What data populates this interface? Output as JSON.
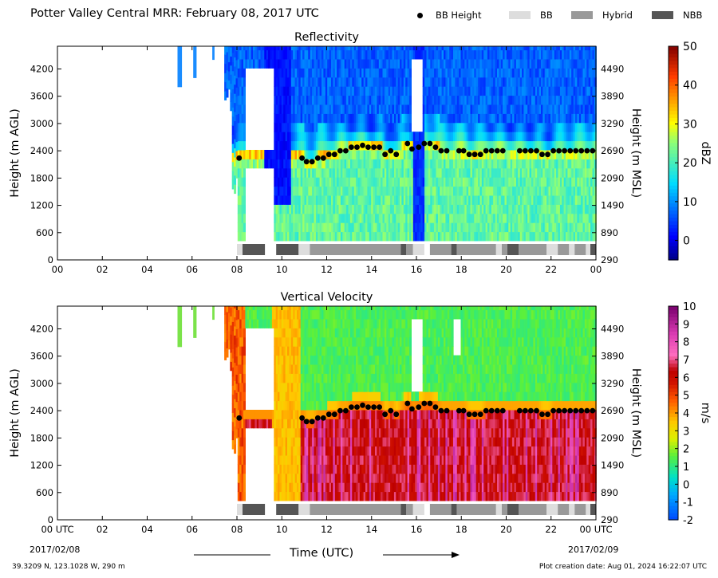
{
  "figure": {
    "title": "Potter Valley Central MRR:  February 08, 2017 UTC",
    "location_text": "39.3209 N, 123.1028 W, 290 m",
    "creation_text": "Plot creation date: Aug 01, 2024 16:22:07 UTC",
    "x_axis_title": "Time (UTC)",
    "date_start": "2017/02/08",
    "date_end": "2017/02/09"
  },
  "legend": {
    "items": [
      {
        "label": "BB Height",
        "kind": "dot",
        "color": "#000000"
      },
      {
        "label": "BB",
        "kind": "swatch",
        "color": "#dddddd"
      },
      {
        "label": "Hybrid",
        "kind": "swatch",
        "color": "#999999"
      },
      {
        "label": "NBB",
        "kind": "swatch",
        "color": "#555555"
      }
    ]
  },
  "chart_data": [
    {
      "type": "heatmap",
      "title": "Reflectivity",
      "ylabel": "Height (m AGL)",
      "y2label": "Height (m MSL)",
      "xlim": [
        0,
        24
      ],
      "ylim": [
        0,
        4700
      ],
      "x_ticks": [
        "00",
        "02",
        "04",
        "06",
        "08",
        "10",
        "12",
        "14",
        "16",
        "18",
        "20",
        "22",
        "00"
      ],
      "y_ticks": [
        0,
        600,
        1200,
        1800,
        2400,
        3000,
        3600,
        4200
      ],
      "y2_ticks": [
        290,
        890,
        1490,
        2090,
        2690,
        3290,
        3890,
        4490
      ],
      "colorbar": {
        "label": "dBZ",
        "range": [
          -5,
          50
        ],
        "ticks": [
          0,
          10,
          20,
          30,
          40,
          50
        ]
      },
      "bb_height_m_agl": {
        "x": [
          8.1,
          10.9,
          11.1,
          11.35,
          11.6,
          11.85,
          12.1,
          12.35,
          12.6,
          12.85,
          13.1,
          13.35,
          13.6,
          13.85,
          14.1,
          14.35,
          14.6,
          14.85,
          15.1,
          15.6,
          15.8,
          16.1,
          16.35,
          16.6,
          16.85,
          17.1,
          17.35,
          17.9,
          18.1,
          18.35,
          18.6,
          18.85,
          19.1,
          19.35,
          19.6,
          19.85,
          20.6,
          20.85,
          21.1,
          21.35,
          21.6,
          21.85,
          22.1,
          22.35,
          22.6,
          22.85,
          23.1,
          23.35,
          23.6,
          23.85
        ],
        "y": [
          2240,
          2240,
          2160,
          2160,
          2240,
          2240,
          2320,
          2320,
          2400,
          2400,
          2480,
          2480,
          2520,
          2480,
          2480,
          2480,
          2320,
          2400,
          2320,
          2560,
          2440,
          2480,
          2560,
          2560,
          2480,
          2400,
          2400,
          2400,
          2400,
          2320,
          2320,
          2320,
          2400,
          2400,
          2400,
          2400,
          2400,
          2400,
          2400,
          2400,
          2320,
          2320,
          2400,
          2400,
          2400,
          2400,
          2400,
          2400,
          2400,
          2400
        ]
      },
      "bb_type_bar": [
        {
          "start": 8.0,
          "end": 8.25,
          "type": "BB"
        },
        {
          "start": 8.25,
          "end": 9.25,
          "type": "NBB"
        },
        {
          "start": 9.75,
          "end": 10.75,
          "type": "NBB"
        },
        {
          "start": 10.75,
          "end": 11.25,
          "type": "BB"
        },
        {
          "start": 11.25,
          "end": 15.3,
          "type": "Hybrid"
        },
        {
          "start": 15.3,
          "end": 15.55,
          "type": "NBB"
        },
        {
          "start": 15.55,
          "end": 15.85,
          "type": "Hybrid"
        },
        {
          "start": 15.85,
          "end": 16.35,
          "type": "BB"
        },
        {
          "start": 16.6,
          "end": 17.55,
          "type": "Hybrid"
        },
        {
          "start": 17.55,
          "end": 17.8,
          "type": "NBB"
        },
        {
          "start": 17.8,
          "end": 19.55,
          "type": "Hybrid"
        },
        {
          "start": 19.55,
          "end": 19.8,
          "type": "BB"
        },
        {
          "start": 19.8,
          "end": 20.05,
          "type": "Hybrid"
        },
        {
          "start": 20.05,
          "end": 20.55,
          "type": "NBB"
        },
        {
          "start": 20.55,
          "end": 21.8,
          "type": "Hybrid"
        },
        {
          "start": 21.8,
          "end": 22.3,
          "type": "BB"
        },
        {
          "start": 22.3,
          "end": 22.8,
          "type": "Hybrid"
        },
        {
          "start": 22.8,
          "end": 23.05,
          "type": "BB"
        },
        {
          "start": 23.05,
          "end": 23.55,
          "type": "Hybrid"
        },
        {
          "start": 23.55,
          "end": 23.75,
          "type": "BB"
        },
        {
          "start": 23.75,
          "end": 24.0,
          "type": "NBB"
        }
      ]
    },
    {
      "type": "heatmap",
      "title": "Vertical Velocity",
      "ylabel": "Height (m AGL)",
      "y2label": "Height (m MSL)",
      "xlim": [
        0,
        24
      ],
      "ylim": [
        0,
        4700
      ],
      "x_ticks": [
        "00 UTC",
        "02",
        "04",
        "06",
        "08",
        "10",
        "12",
        "14",
        "16",
        "18",
        "20",
        "22",
        "00 UTC"
      ],
      "y_ticks": [
        0,
        600,
        1200,
        1800,
        2400,
        3000,
        3600,
        4200
      ],
      "y2_ticks": [
        290,
        890,
        1490,
        2090,
        2690,
        3290,
        3890,
        4490
      ],
      "colorbar": {
        "label": "m/s",
        "range": [
          -2,
          10
        ],
        "ticks": [
          -2,
          -1,
          0,
          1,
          2,
          3,
          4,
          5,
          6,
          7,
          8,
          9,
          10
        ]
      },
      "bb_height_m_agl": {
        "x": [
          8.1,
          10.9,
          11.1,
          11.35,
          11.6,
          11.85,
          12.1,
          12.35,
          12.6,
          12.85,
          13.1,
          13.35,
          13.6,
          13.85,
          14.1,
          14.35,
          14.6,
          14.85,
          15.1,
          15.6,
          15.8,
          16.1,
          16.35,
          16.6,
          16.85,
          17.1,
          17.35,
          17.9,
          18.1,
          18.35,
          18.6,
          18.85,
          19.1,
          19.35,
          19.6,
          19.85,
          20.6,
          20.85,
          21.1,
          21.35,
          21.6,
          21.85,
          22.1,
          22.35,
          22.6,
          22.85,
          23.1,
          23.35,
          23.6,
          23.85
        ],
        "y": [
          2240,
          2240,
          2160,
          2160,
          2240,
          2240,
          2320,
          2320,
          2400,
          2400,
          2480,
          2480,
          2520,
          2480,
          2480,
          2480,
          2320,
          2400,
          2320,
          2560,
          2440,
          2480,
          2560,
          2560,
          2480,
          2400,
          2400,
          2400,
          2400,
          2320,
          2320,
          2320,
          2400,
          2400,
          2400,
          2400,
          2400,
          2400,
          2400,
          2400,
          2320,
          2320,
          2400,
          2400,
          2400,
          2400,
          2400,
          2400,
          2400,
          2400
        ]
      },
      "bb_type_bar": [
        {
          "start": 8.0,
          "end": 8.25,
          "type": "BB"
        },
        {
          "start": 8.25,
          "end": 9.25,
          "type": "NBB"
        },
        {
          "start": 9.75,
          "end": 10.75,
          "type": "NBB"
        },
        {
          "start": 10.75,
          "end": 11.25,
          "type": "BB"
        },
        {
          "start": 11.25,
          "end": 15.3,
          "type": "Hybrid"
        },
        {
          "start": 15.3,
          "end": 15.55,
          "type": "NBB"
        },
        {
          "start": 15.55,
          "end": 15.85,
          "type": "Hybrid"
        },
        {
          "start": 15.85,
          "end": 16.35,
          "type": "BB"
        },
        {
          "start": 16.6,
          "end": 17.55,
          "type": "Hybrid"
        },
        {
          "start": 17.55,
          "end": 17.8,
          "type": "NBB"
        },
        {
          "start": 17.8,
          "end": 19.55,
          "type": "Hybrid"
        },
        {
          "start": 19.55,
          "end": 19.8,
          "type": "BB"
        },
        {
          "start": 19.8,
          "end": 20.05,
          "type": "Hybrid"
        },
        {
          "start": 20.05,
          "end": 20.55,
          "type": "NBB"
        },
        {
          "start": 20.55,
          "end": 21.8,
          "type": "Hybrid"
        },
        {
          "start": 21.8,
          "end": 22.3,
          "type": "BB"
        },
        {
          "start": 22.3,
          "end": 22.8,
          "type": "Hybrid"
        },
        {
          "start": 22.8,
          "end": 23.05,
          "type": "BB"
        },
        {
          "start": 23.05,
          "end": 23.55,
          "type": "Hybrid"
        },
        {
          "start": 23.55,
          "end": 23.75,
          "type": "BB"
        },
        {
          "start": 23.75,
          "end": 24.0,
          "type": "NBB"
        }
      ]
    }
  ]
}
